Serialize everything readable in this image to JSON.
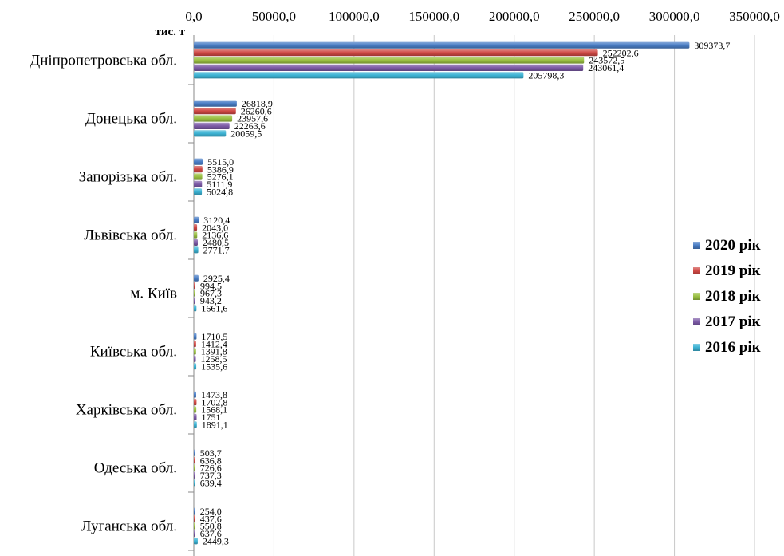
{
  "chart_data": {
    "type": "bar",
    "orientation": "horizontal",
    "unit_label": "тис. т",
    "xlim": [
      0,
      350000
    ],
    "x_ticks": [
      "0,0",
      "50000,0",
      "100000,0",
      "150000,0",
      "200000,0",
      "250000,0",
      "300000,0",
      "350000,0"
    ],
    "grid": true,
    "legend_position": "right",
    "categories": [
      "Дніпропетровська обл.",
      "Донецька обл.",
      "Запорізька обл.",
      "Львівська обл.",
      "м. Київ",
      "Київська обл.",
      "Харківська обл.",
      "Одеська обл.",
      "Луганська обл."
    ],
    "series": [
      {
        "name": "2020 рік",
        "color": "#4a7ec6",
        "values": [
          309373.7,
          26818.9,
          5515.0,
          3120.4,
          2925.4,
          1710.5,
          1473.8,
          503.7,
          254.0
        ],
        "labels": [
          "309373,7",
          "26818,9",
          "5515,0",
          "3120,4",
          "2925,4",
          "1710,5",
          "1473,8",
          "503,7",
          "254,0"
        ]
      },
      {
        "name": "2019 рік",
        "color": "#d04844",
        "values": [
          252202.6,
          26260.6,
          5386.9,
          2043.0,
          994.5,
          1412.4,
          1702.8,
          636.8,
          437.6
        ],
        "labels": [
          "252202,6",
          "26260,6",
          "5386,9",
          "2043,0",
          "994,5",
          "1412,4",
          "1702,8",
          "636,8",
          "437,6"
        ]
      },
      {
        "name": "2018 рік",
        "color": "#9ac042",
        "values": [
          243572.5,
          23957.6,
          5276.1,
          2136.6,
          967.3,
          1391.8,
          1568.1,
          726.6,
          550.8
        ],
        "labels": [
          "243572,5",
          "23957,6",
          "5276,1",
          "2136,6",
          "967,3",
          "1391,8",
          "1568,1",
          "726,6",
          "550,8"
        ]
      },
      {
        "name": "2017 рік",
        "color": "#7c5aa6",
        "values": [
          243061.4,
          22263.6,
          5111.9,
          2480.5,
          943.2,
          1258.5,
          1751,
          737.3,
          637.6
        ],
        "labels": [
          "243061,4",
          "22263,6",
          "5111,9",
          "2480,5",
          "943,2",
          "1258,5",
          "1751",
          "737,3",
          "637,6"
        ]
      },
      {
        "name": "2016 рік",
        "color": "#3db3d4",
        "values": [
          205798.3,
          20059.5,
          5024.8,
          2771.7,
          1661.6,
          1535.6,
          1891.1,
          639.4,
          2449.3
        ],
        "labels": [
          "205798,3",
          "20059,5",
          "5024,8",
          "2771,7",
          "1661,6",
          "1535,6",
          "1891,1",
          "639,4",
          "2449,3"
        ]
      }
    ]
  }
}
